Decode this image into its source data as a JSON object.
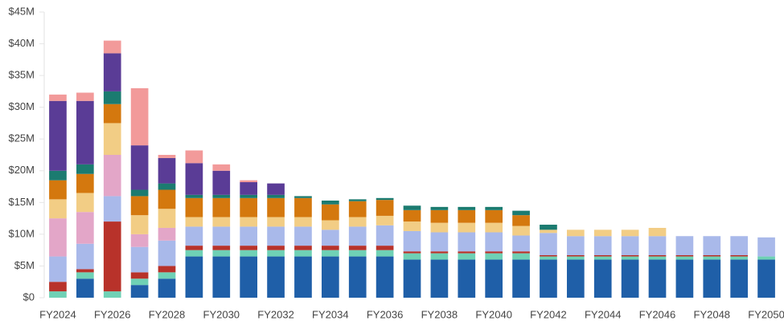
{
  "chart_data": {
    "type": "stacked_bar",
    "categories": [
      "FY2024",
      null,
      "FY2026",
      null,
      "FY2028",
      null,
      "FY2030",
      null,
      "FY2032",
      null,
      "FY2034",
      null,
      "FY2036",
      null,
      "FY2038",
      null,
      "FY2040",
      null,
      "FY2042",
      null,
      "FY2044",
      null,
      "FY2046",
      null,
      "FY2048",
      null,
      "FY2050"
    ],
    "ylim": [
      0,
      45
    ],
    "yticks": [
      {
        "value": 0,
        "label": "$0"
      },
      {
        "value": 5,
        "label": "$5M"
      },
      {
        "value": 10,
        "label": "$10M"
      },
      {
        "value": 15,
        "label": "$15M"
      },
      {
        "value": 20,
        "label": "$20M"
      },
      {
        "value": 25,
        "label": "$25M"
      },
      {
        "value": 30,
        "label": "$30M"
      },
      {
        "value": 35,
        "label": "$35M"
      },
      {
        "value": 40,
        "label": "$40M"
      },
      {
        "value": 45,
        "label": "$45M"
      }
    ],
    "grid": false,
    "series": [
      {
        "color": "#1f5fa8",
        "values": [
          0,
          3,
          0,
          2,
          3,
          6.5,
          6.5,
          6.5,
          6.5,
          6.5,
          6.5,
          6.5,
          6.5,
          6,
          6,
          6,
          6,
          6,
          6,
          6,
          6,
          6,
          6,
          6,
          6,
          6,
          6
        ]
      },
      {
        "color": "#6fd1b5",
        "values": [
          1,
          1,
          1,
          1,
          1,
          1,
          1,
          1,
          1,
          1,
          1,
          1,
          1,
          1,
          1,
          1,
          1,
          1,
          0.5,
          0.5,
          0.5,
          0.5,
          0.5,
          0.5,
          0.5,
          0.5,
          0.5
        ]
      },
      {
        "color": "#b8322a",
        "values": [
          1.5,
          0.5,
          11,
          1,
          1,
          0.7,
          0.7,
          0.7,
          0.7,
          0.7,
          0.7,
          0.7,
          0.7,
          0.3,
          0.3,
          0.3,
          0.3,
          0.3,
          0.2,
          0.2,
          0.2,
          0.2,
          0.2,
          0.2,
          0.2,
          0.2,
          0
        ]
      },
      {
        "color": "#a9b9ea",
        "values": [
          4,
          4,
          4,
          4,
          4,
          3,
          3,
          3,
          3,
          3,
          2.5,
          3,
          3.2,
          3.2,
          3,
          3,
          3,
          2.5,
          3.5,
          3,
          3,
          3,
          3,
          3,
          3,
          3,
          3
        ]
      },
      {
        "color": "#e3a6c8",
        "values": [
          6,
          5,
          6.5,
          2,
          2,
          0,
          0,
          0,
          0,
          0,
          0,
          0,
          0,
          0,
          0,
          0,
          0,
          0,
          0,
          0,
          0,
          0,
          0,
          0,
          0,
          0,
          0
        ]
      },
      {
        "color": "#f2cd85",
        "values": [
          3,
          3,
          5,
          3,
          3,
          1.5,
          1.5,
          1.5,
          1.5,
          1.5,
          1.5,
          1.5,
          1.5,
          1.5,
          1.5,
          1.5,
          1.5,
          1.5,
          0.5,
          1,
          1,
          1,
          1.3,
          0,
          0,
          0,
          0
        ]
      },
      {
        "color": "#d4780e",
        "values": [
          3,
          3,
          3,
          3,
          3,
          3,
          3,
          3,
          3,
          3,
          2.5,
          2.5,
          2.5,
          1.8,
          2,
          2,
          2,
          1.7,
          0,
          0,
          0,
          0,
          0,
          0,
          0,
          0,
          0
        ]
      },
      {
        "color": "#1b7b70",
        "values": [
          1.5,
          1.5,
          2,
          1,
          1,
          0.5,
          0.5,
          0.5,
          0.5,
          0.3,
          0.6,
          0.3,
          0.3,
          0.7,
          0.5,
          0.5,
          0.5,
          0.7,
          0.8,
          0,
          0,
          0,
          0,
          0,
          0,
          0,
          0
        ]
      },
      {
        "color": "#5a3c96",
        "values": [
          11,
          10,
          6,
          7,
          4,
          5,
          3.8,
          2,
          1.8,
          0,
          0,
          0,
          0,
          0,
          0,
          0,
          0,
          0,
          0,
          0,
          0,
          0,
          0,
          0,
          0,
          0,
          0
        ]
      },
      {
        "color": "#f29a9a",
        "values": [
          1,
          1.3,
          2,
          9,
          0.5,
          2,
          1,
          0.3,
          0,
          0,
          0,
          0,
          0,
          0,
          0,
          0,
          0,
          0,
          0,
          0,
          0,
          0,
          0,
          0,
          0,
          0,
          0
        ]
      }
    ]
  }
}
